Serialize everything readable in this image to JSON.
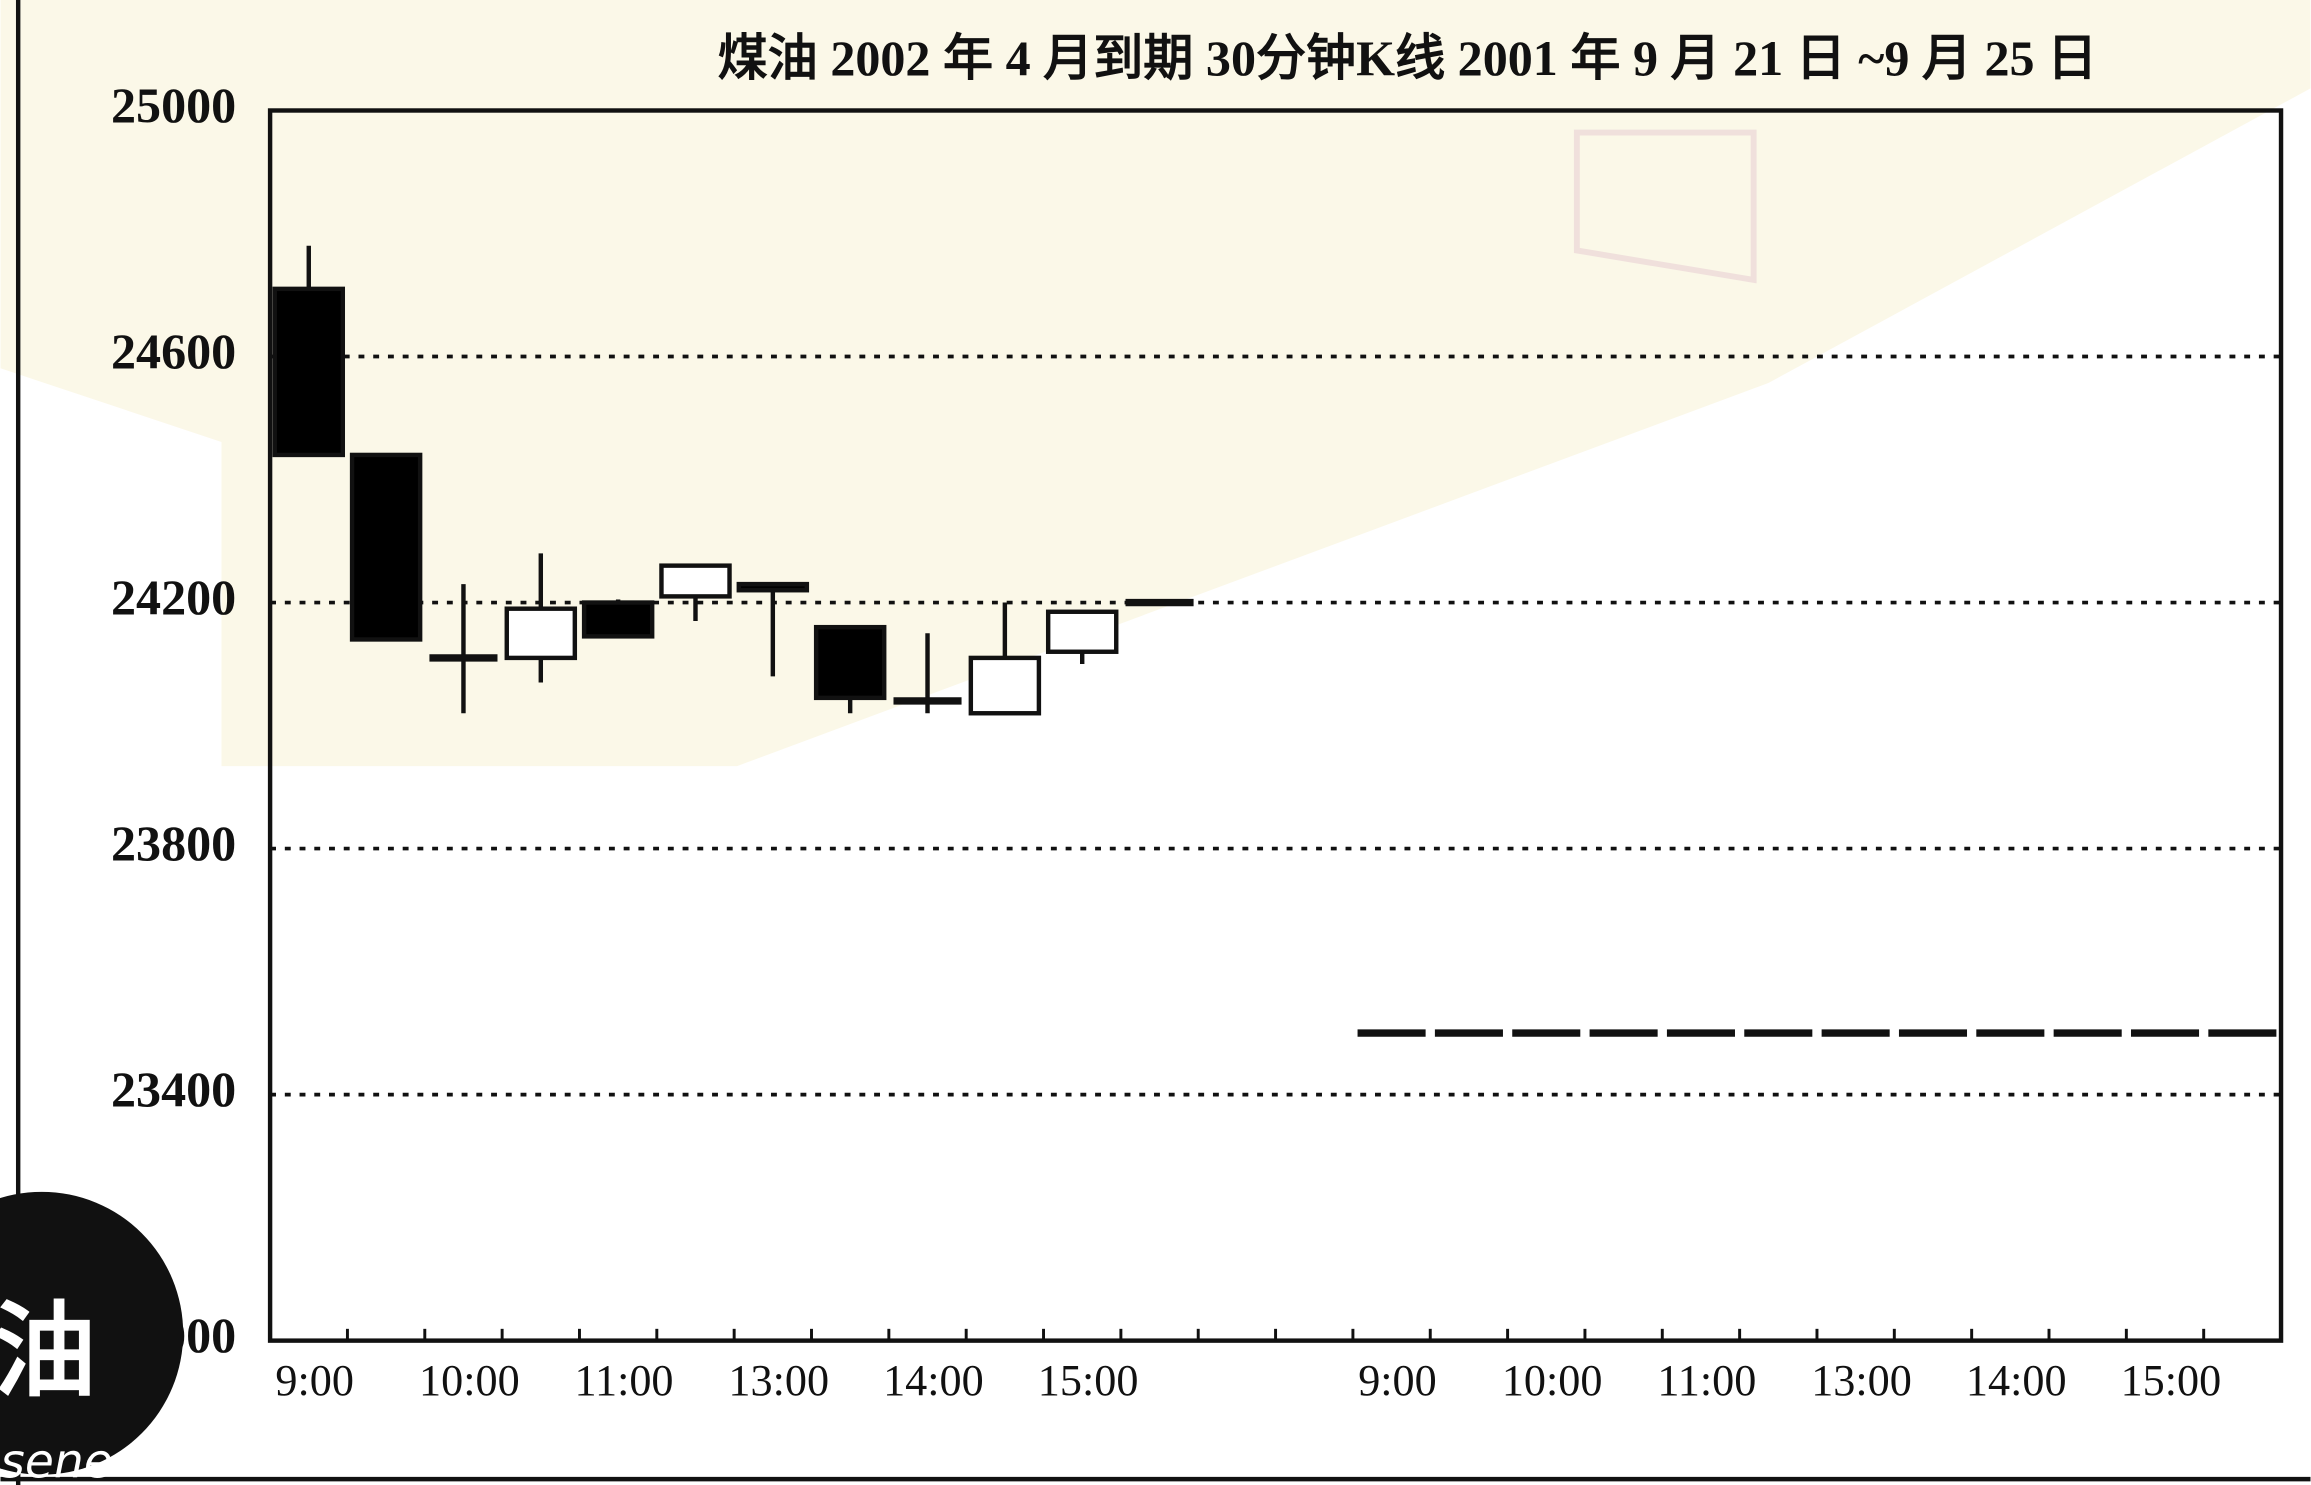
{
  "chart_data": {
    "type": "candlestick",
    "title": "煤油 2002 年 4 月到期 30分钟K线 2001 年 9 月 21 日 ~9 月 25 日",
    "categories": [
      "9:00",
      null,
      "10:00",
      null,
      "11:00",
      null,
      "13:00",
      null,
      "14:00",
      null,
      "15:00",
      null,
      null,
      null,
      "9:00",
      null,
      "10:00",
      null,
      "11:00",
      null,
      "13:00",
      null,
      "14:00",
      null,
      "15:00",
      null
    ],
    "open": [
      24710,
      24440,
      24110,
      24110,
      24200,
      24210,
      24230,
      24160,
      24040,
      24020,
      24120,
      24200,
      null,
      null,
      23500,
      23500,
      23500,
      23500,
      23500,
      23500,
      23500,
      23500,
      23500,
      23500,
      23500,
      23500
    ],
    "high": [
      24780,
      24440,
      24230,
      24280,
      24205,
      24260,
      24230,
      24160,
      24150,
      24200,
      24185,
      24200,
      null,
      null,
      23500,
      23500,
      23500,
      23500,
      23500,
      23500,
      23500,
      23500,
      23500,
      23500,
      23500,
      23500
    ],
    "low": [
      24440,
      24140,
      24020,
      24070,
      24145,
      24170,
      24080,
      24020,
      24020,
      24020,
      24100,
      24200,
      null,
      null,
      23500,
      23500,
      23500,
      23500,
      23500,
      23500,
      23500,
      23500,
      23500,
      23500,
      23500,
      23500
    ],
    "close": [
      24440,
      24140,
      24110,
      24190,
      24145,
      24260,
      24220,
      24045,
      24040,
      24110,
      24185,
      24200,
      null,
      null,
      23500,
      23500,
      23500,
      23500,
      23500,
      23500,
      23500,
      23500,
      23500,
      23500,
      23500,
      23500
    ],
    "up_color": "#ffffff",
    "down_color": "#000000",
    "ylim": [
      23000,
      25000
    ],
    "yticks": [
      23000,
      23400,
      23800,
      24200,
      24600,
      25000
    ],
    "grid": true
  },
  "badge": {
    "char": "油",
    "text": "sene"
  }
}
